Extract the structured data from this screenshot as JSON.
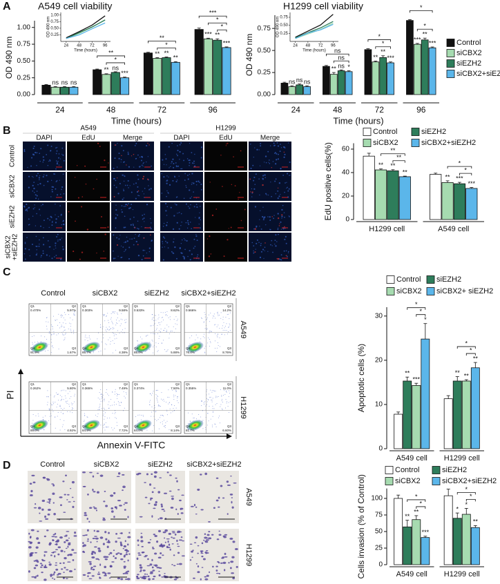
{
  "panel_labels": [
    "A",
    "B",
    "C",
    "D"
  ],
  "chart_data": [
    {
      "type": "bar",
      "title": "A549 cell viability",
      "ylabel": "OD 490 nm",
      "xlabel": "Time (hours)",
      "categories": [
        "24",
        "48",
        "72",
        "96"
      ],
      "ylim": [
        0,
        1.1
      ],
      "yticks": [
        {
          "value": 0,
          "label": "0.00"
        },
        {
          "value": 0.25,
          "label": "0.25"
        },
        {
          "value": 0.5,
          "label": "0.50"
        },
        {
          "value": 0.75,
          "label": "0.75"
        },
        {
          "value": 1,
          "label": "1.00"
        }
      ],
      "series": [
        {
          "name": "Control",
          "color": "#111111",
          "values": [
            0.14,
            0.37,
            0.62,
            0.97
          ],
          "errors": [
            0.01,
            0.01,
            0.01,
            0.02
          ]
        },
        {
          "name": "siCBX2",
          "color": "#a6dbb0",
          "values": [
            0.11,
            0.3,
            0.54,
            0.83
          ],
          "errors": [
            0.01,
            0.01,
            0.01,
            0.01
          ],
          "significance": [
            "ns",
            "**",
            "**",
            "***"
          ]
        },
        {
          "name": "siEZH2",
          "color": "#2e7d5b",
          "values": [
            0.11,
            0.33,
            0.55,
            0.81
          ],
          "errors": [
            0.01,
            0.01,
            0.01,
            0.02
          ],
          "significance": [
            "ns",
            "ns",
            "**",
            "**"
          ]
        },
        {
          "name": "siCBX2+siEZH2",
          "color": "#5bb6ea",
          "values": [
            0.11,
            0.25,
            0.48,
            0.7
          ],
          "errors": [
            0.01,
            0.01,
            0.01,
            0.01
          ],
          "significance": [
            "ns",
            "***",
            "**",
            "***"
          ]
        }
      ],
      "brackets": [
        null,
        [
          "**",
          "*"
        ],
        [
          "**",
          "*"
        ],
        [
          "***",
          "*",
          "*"
        ]
      ],
      "inset": {
        "type": "line",
        "x": [
          24,
          48,
          72,
          96
        ],
        "xlim": [
          14,
          106
        ],
        "xticks": [
          24,
          48,
          72,
          96
        ],
        "ylim": [
          0,
          1.1
        ],
        "yticks": [
          {
            "value": 0.25,
            "label": "0.25"
          },
          {
            "value": 0.5,
            "label": "0.50"
          },
          {
            "value": 0.75,
            "label": "0.75"
          },
          {
            "value": 1,
            "label": "1.00"
          }
        ],
        "ylabel": "OD 490 nm",
        "xlabel": "Time (hours)"
      }
    },
    {
      "type": "bar",
      "title": "H1299 cell viability",
      "ylabel": "OD 490 nm",
      "xlabel": "Time (hours)",
      "categories": [
        "24",
        "48",
        "72",
        "96"
      ],
      "ylim": [
        0,
        0.9
      ],
      "yticks": [
        {
          "value": 0,
          "label": "0.00"
        },
        {
          "value": 0.25,
          "label": "0.25"
        },
        {
          "value": 0.5,
          "label": "0.50"
        },
        {
          "value": 0.75,
          "label": "0.75"
        }
      ],
      "legend": "right",
      "series": [
        {
          "name": "Control",
          "color": "#111111",
          "values": [
            0.13,
            0.32,
            0.51,
            0.84
          ],
          "errors": [
            0.01,
            0.01,
            0.01,
            0.01
          ]
        },
        {
          "name": "siCBX2",
          "color": "#a6dbb0",
          "values": [
            0.09,
            0.23,
            0.37,
            0.57
          ],
          "errors": [
            0.01,
            0.02,
            0.01,
            0.01
          ],
          "significance": [
            "ns",
            "**",
            "**",
            "***"
          ]
        },
        {
          "name": "siEZH2",
          "color": "#2e7d5b",
          "values": [
            0.11,
            0.27,
            0.42,
            0.62
          ],
          "errors": [
            0.01,
            0.01,
            0.02,
            0.02
          ],
          "significance": [
            "ns",
            "ns",
            "**",
            "**"
          ]
        },
        {
          "name": "siCBX2+siEZH2",
          "color": "#5bb6ea",
          "values": [
            0.09,
            0.26,
            0.36,
            0.53
          ],
          "errors": [
            0.01,
            0.01,
            0.01,
            0.01
          ],
          "significance": [
            "ns",
            "*",
            "***",
            "***"
          ]
        }
      ],
      "brackets": [
        null,
        [
          "ns",
          "ns"
        ],
        [
          "*",
          "*"
        ],
        [
          "*",
          "*"
        ]
      ],
      "inset": {
        "type": "line",
        "x": [
          24,
          48,
          72,
          96
        ],
        "xlim": [
          14,
          106
        ],
        "xticks": [
          24,
          48,
          72,
          96
        ],
        "ylim": [
          0,
          0.9
        ],
        "yticks": [
          {
            "value": 0.25,
            "label": "0.25"
          },
          {
            "value": 0.5,
            "label": "0.50"
          },
          {
            "value": 0.75,
            "label": "0.75"
          }
        ],
        "ylabel": "OD 490 nm",
        "xlabel": "Time (hours)"
      }
    },
    {
      "type": "bar",
      "ylabel": "EdU positive cells(%)",
      "categories": [
        "H1299 cell",
        "A549 cell"
      ],
      "ylim": [
        0,
        65
      ],
      "yticks": [
        0,
        20,
        40,
        60
      ],
      "series": [
        {
          "name": "Control",
          "color": "#ffffff",
          "values": [
            54,
            38.5
          ],
          "errors": [
            2.5,
            1
          ]
        },
        {
          "name": "siCBX2",
          "color": "#a6dbb0",
          "values": [
            42.3,
            31.5
          ],
          "errors": [
            0.8,
            1.5
          ],
          "significance": [
            "**",
            "**"
          ]
        },
        {
          "name": "siEZH2",
          "color": "#2e7d5b",
          "values": [
            41.5,
            30.5
          ],
          "errors": [
            1,
            1.2
          ],
          "significance": [
            "**",
            "***"
          ]
        },
        {
          "name": "siCBX2+siEZH2",
          "color": "#5bb6ea",
          "values": [
            36.5,
            26.5
          ],
          "errors": [
            0.5,
            0.8
          ],
          "significance": [
            "**",
            "***"
          ]
        }
      ],
      "brackets": [
        [
          null,
          "**",
          "**"
        ],
        [
          null,
          "*",
          "*"
        ]
      ]
    },
    {
      "type": "bar",
      "ylabel": "Apoptotic cells (%)",
      "categories": [
        "A549 cell",
        "H1299 cell"
      ],
      "ylim": [
        0,
        32
      ],
      "yticks": [
        0,
        10,
        20,
        30
      ],
      "series": [
        {
          "name": "Control",
          "color": "#ffffff",
          "values": [
            7.8,
            11.3
          ],
          "errors": [
            0.5,
            0.7
          ]
        },
        {
          "name": "siEZH2",
          "color": "#2e7d5b",
          "values": [
            15.3,
            15.3
          ],
          "errors": [
            0.9,
            1
          ],
          "significance": [
            "**",
            "**"
          ]
        },
        {
          "name": "siCBX2",
          "color": "#a6dbb0",
          "values": [
            14.3,
            15.3
          ],
          "errors": [
            0.5,
            0.3
          ],
          "significance": [
            "***",
            "**"
          ]
        },
        {
          "name": "siCBX2+ siEZH2",
          "color": "#5bb6ea",
          "values": [
            24.8,
            18.3
          ],
          "errors": [
            3.5,
            1.2
          ],
          "significance": [
            "*",
            "**"
          ]
        }
      ],
      "brackets": [
        [
          null,
          "*",
          "*"
        ],
        [
          null,
          "*",
          "*"
        ]
      ]
    },
    {
      "type": "bar",
      "ylabel": "Cells invasion (% of Control)",
      "categories": [
        "A549 cell",
        "H1299 cell"
      ],
      "ylim": [
        0,
        115
      ],
      "yticks": [
        0,
        25,
        50,
        75,
        100
      ],
      "series": [
        {
          "name": "Control",
          "color": "#ffffff",
          "values": [
            100,
            104
          ],
          "errors": [
            5,
            10
          ]
        },
        {
          "name": "siEZH2",
          "color": "#2e7d5b",
          "values": [
            57,
            70
          ],
          "errors": [
            10,
            8
          ],
          "significance": [
            "**",
            "*"
          ]
        },
        {
          "name": "siCBX2",
          "color": "#a6dbb0",
          "values": [
            68,
            76
          ],
          "errors": [
            6,
            9
          ],
          "significance": [
            "**",
            "*"
          ]
        },
        {
          "name": "siCBX2+siEZH2",
          "color": "#5bb6ea",
          "values": [
            41,
            56
          ],
          "errors": [
            2,
            3
          ],
          "significance": [
            "***",
            "**"
          ]
        }
      ],
      "brackets": [
        [
          null,
          "*",
          "*"
        ],
        [
          null,
          "*",
          "*"
        ]
      ]
    }
  ],
  "edu_assay": {
    "groups": [
      {
        "title": "A549",
        "columns": [
          "DAPI",
          "EdU",
          "Merge"
        ]
      },
      {
        "title": "H1299",
        "columns": [
          "DAPI",
          "EdU",
          "Merge"
        ]
      }
    ],
    "rows": [
      "Control",
      "siCBX2",
      "siEZH2",
      [
        "siCBX2",
        "+siEZH2"
      ]
    ]
  },
  "flow_cytometry": {
    "columns": [
      "Control",
      "siCBX2",
      "siEZH2",
      "siCBX2+siEZH2"
    ],
    "rows": [
      "A549",
      "H1299"
    ],
    "xlabel": "Annexin V-FITC",
    "ylabel": "PI",
    "quadrant_names": [
      "Q1",
      "Q2",
      "Q3",
      "Q4"
    ],
    "percentages": [
      [
        [
          "0.470%",
          "5.97%",
          "1.67%",
          "91.9%"
        ],
        [
          "0.303%",
          "9.58%",
          "4.38%",
          "85.7%"
        ],
        [
          "0.533%",
          "8.62%",
          "5.88%",
          "85.0%"
        ],
        [
          "0.566%",
          "14.2%",
          "8.76%",
          "76.4%"
        ]
      ],
      [
        [
          "0.262%",
          "5.80%",
          "4.92%",
          "89.0%"
        ],
        [
          "0.365%",
          "7.49%",
          "7.72%",
          "84.9%"
        ],
        [
          "0.374%",
          "7.50%",
          "8.14%",
          "84.0%"
        ],
        [
          "0.355%",
          "11.0%",
          "6.60%",
          "81.7%"
        ]
      ]
    ]
  },
  "transwell": {
    "columns": [
      "Control",
      "siCBX2",
      "siEZH2",
      "siCBX2+siEZH2"
    ],
    "rows": [
      "A549",
      "H1299"
    ]
  }
}
